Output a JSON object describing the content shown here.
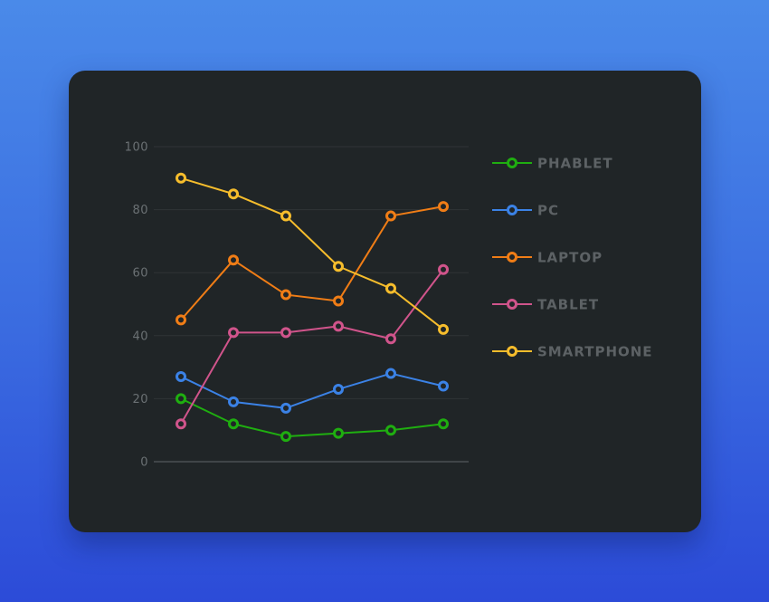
{
  "chart_data": {
    "type": "line",
    "x": [
      1,
      2,
      3,
      4,
      5,
      6
    ],
    "ylim": [
      0,
      100
    ],
    "yticks": [
      0,
      20,
      40,
      60,
      80,
      100
    ],
    "grid": true,
    "legend_position": "right",
    "series": [
      {
        "name": "PHABLET",
        "color": "#1fae10",
        "values": [
          20,
          12,
          8,
          9,
          10,
          12
        ]
      },
      {
        "name": "PC",
        "color": "#3b82e6",
        "values": [
          27,
          19,
          17,
          23,
          28,
          24
        ]
      },
      {
        "name": "LAPTOP",
        "color": "#f07d16",
        "values": [
          45,
          64,
          53,
          51,
          78,
          81
        ]
      },
      {
        "name": "TABLET",
        "color": "#d0548b",
        "values": [
          12,
          41,
          41,
          43,
          39,
          61
        ]
      },
      {
        "name": "SMARTPHONE",
        "color": "#f6bd2c",
        "values": [
          90,
          85,
          78,
          62,
          55,
          42
        ]
      }
    ]
  },
  "colors": {
    "card_background": "#202527",
    "grid": "#2f3437",
    "axis": "#4a5053",
    "text": "#5d6265"
  }
}
